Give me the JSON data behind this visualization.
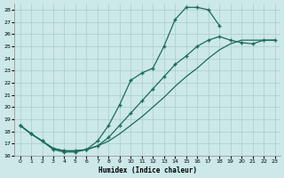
{
  "xlabel": "Humidex (Indice chaleur)",
  "background_color": "#cce8e8",
  "grid_color": "#aacccc",
  "line_color": "#1a6b5a",
  "xlim": [
    -0.5,
    23.5
  ],
  "ylim": [
    16,
    28.5
  ],
  "xticks": [
    0,
    1,
    2,
    3,
    4,
    5,
    6,
    7,
    8,
    9,
    10,
    11,
    12,
    13,
    14,
    15,
    16,
    17,
    18,
    19,
    20,
    21,
    22,
    23
  ],
  "yticks": [
    16,
    17,
    18,
    19,
    20,
    21,
    22,
    23,
    24,
    25,
    26,
    27,
    28
  ],
  "line1_x": [
    0,
    1,
    2,
    3,
    4,
    5,
    6,
    7,
    8,
    9,
    10,
    11,
    12,
    13,
    14,
    15,
    16,
    17,
    18
  ],
  "line1_y": [
    18.5,
    17.8,
    17.2,
    16.5,
    16.3,
    16.3,
    16.5,
    17.2,
    18.5,
    20.2,
    22.2,
    22.8,
    23.2,
    25.0,
    27.2,
    28.2,
    28.2,
    28.0,
    26.7
  ],
  "line2_x": [
    0,
    1,
    2,
    3,
    4,
    5,
    6,
    7,
    8,
    9,
    10,
    11,
    12,
    13,
    14,
    15,
    16,
    17,
    18,
    19,
    20,
    21,
    22,
    23
  ],
  "line2_y": [
    18.5,
    17.8,
    17.2,
    16.6,
    16.4,
    16.4,
    16.5,
    16.8,
    17.5,
    18.5,
    19.5,
    20.5,
    21.5,
    22.5,
    23.5,
    24.2,
    25.0,
    25.5,
    25.8,
    25.5,
    25.3,
    25.2,
    25.5,
    25.5
  ],
  "line3_x": [
    0,
    1,
    2,
    3,
    4,
    5,
    6,
    7,
    8,
    9,
    10,
    11,
    12,
    13,
    14,
    15,
    16,
    17,
    18,
    19,
    20,
    21,
    22,
    23
  ],
  "line3_y": [
    18.5,
    17.8,
    17.2,
    16.6,
    16.4,
    16.4,
    16.5,
    16.8,
    17.2,
    17.8,
    18.5,
    19.2,
    20.0,
    20.8,
    21.7,
    22.5,
    23.2,
    24.0,
    24.7,
    25.2,
    25.5,
    25.5,
    25.5,
    25.5
  ]
}
